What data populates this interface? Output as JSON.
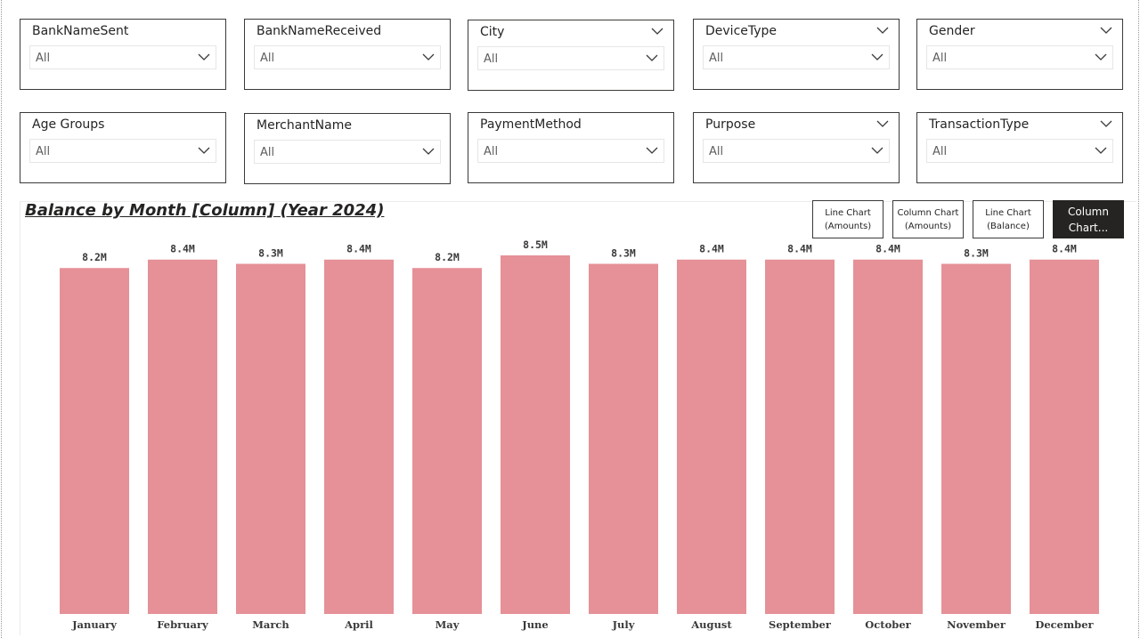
{
  "slicers": [
    {
      "title": "BankNameSent",
      "value": "All",
      "header_chevron": false
    },
    {
      "title": "BankNameReceived",
      "value": "All",
      "header_chevron": false
    },
    {
      "title": "City",
      "value": "All",
      "header_chevron": true
    },
    {
      "title": "DeviceType",
      "value": "All",
      "header_chevron": true
    },
    {
      "title": "Gender",
      "value": "All",
      "header_chevron": true
    },
    {
      "title": "Age Groups",
      "value": "All",
      "header_chevron": false
    },
    {
      "title": "MerchantName",
      "value": "All",
      "header_chevron": false
    },
    {
      "title": "PaymentMethod",
      "value": "All",
      "header_chevron": false
    },
    {
      "title": "Purpose",
      "value": "All",
      "header_chevron": true
    },
    {
      "title": "TransactionType",
      "value": "All",
      "header_chevron": true
    }
  ],
  "chart_title": "Balance by Month [Column] (Year 2024)",
  "toggles": [
    {
      "line1": "Line Chart",
      "line2": "(Amounts)"
    },
    {
      "line1": "Column Chart",
      "line2": "(Amounts)"
    },
    {
      "line1": "Line Chart",
      "line2": "(Balance)"
    },
    {
      "line1": "Column",
      "line2": "Chart..."
    }
  ],
  "chart_data": {
    "type": "bar",
    "title": "Balance by Month [Column] (Year 2024)",
    "categories": [
      "January",
      "February",
      "March",
      "April",
      "May",
      "June",
      "July",
      "August",
      "September",
      "October",
      "November",
      "December"
    ],
    "values": [
      8.2,
      8.4,
      8.3,
      8.4,
      8.2,
      8.5,
      8.3,
      8.4,
      8.4,
      8.4,
      8.3,
      8.4
    ],
    "data_labels": [
      "8.2M",
      "8.4M",
      "8.3M",
      "8.4M",
      "8.2M",
      "8.5M",
      "8.3M",
      "8.4M",
      "8.4M",
      "8.4M",
      "8.3M",
      "8.4M"
    ],
    "unit": "M",
    "bar_color": "#e69097",
    "ylim": [
      0,
      8.5
    ],
    "grid": false,
    "legend": "none"
  },
  "colors": {
    "border": "#3b3a39",
    "active_button": "#252423",
    "bar": "#e69097"
  }
}
